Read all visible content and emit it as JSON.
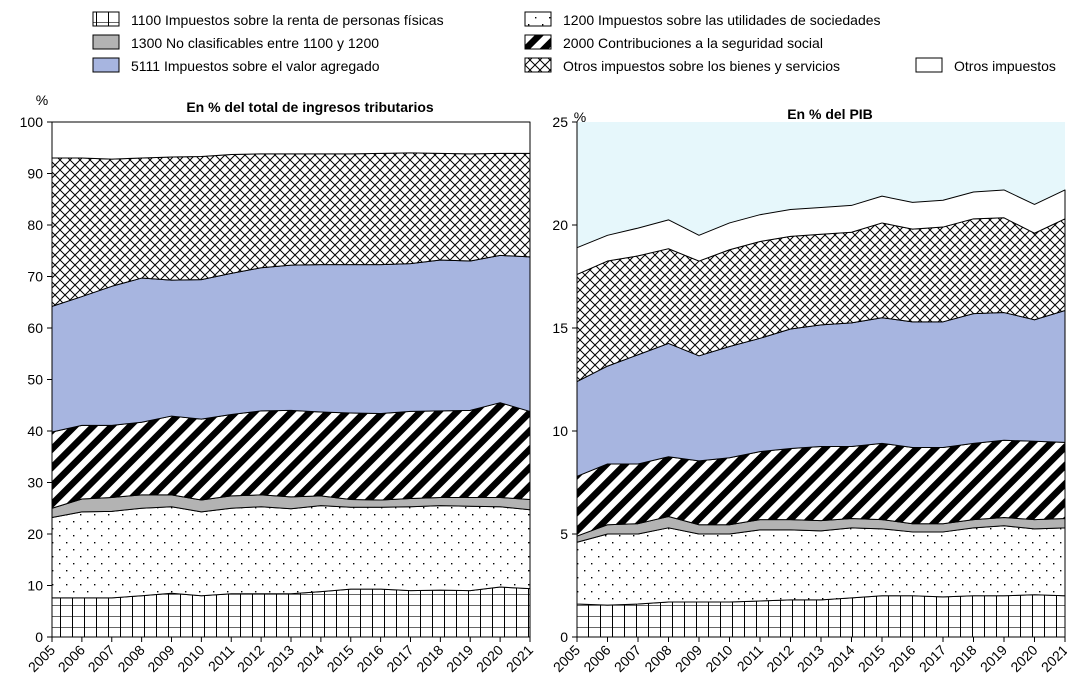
{
  "chart_data": {
    "type": "area",
    "stacked": true,
    "legend_position": "top",
    "x": [
      "2005",
      "2006",
      "2007",
      "2008",
      "2009",
      "2010",
      "2011",
      "2012",
      "2013",
      "2014",
      "2015",
      "2016",
      "2017",
      "2018",
      "2019",
      "2020",
      "2021"
    ],
    "legend": [
      {
        "key": "s1100",
        "label": "1100 Impuestos sobre la renta de personas físicas",
        "fill": "grid",
        "color": "#ffffff"
      },
      {
        "key": "s1200",
        "label": "1200 Impuestos sobre las utilidades de sociedades",
        "fill": "dots",
        "color": "#ffffff"
      },
      {
        "key": "s1300",
        "label": "1300 No clasificables entre 1100 y 1200",
        "fill": "solid",
        "color": "#b3b3b3"
      },
      {
        "key": "s2000",
        "label": "2000 Contribuciones a la seguridad social",
        "fill": "diagonal",
        "color": "#000000"
      },
      {
        "key": "s5111",
        "label": "5111 Impuestos sobre el valor agregado",
        "fill": "solid",
        "color": "#a7b5e0"
      },
      {
        "key": "s5other",
        "label": "Otros impuestos sobre los bienes y servicios",
        "fill": "crosshatch",
        "color": "#ffffff"
      },
      {
        "key": "sother",
        "label": "Otros impuestos",
        "fill": "solid",
        "color": "#ffffff"
      }
    ],
    "panels": [
      {
        "title": "En % del total de ingresos tributarios",
        "ylabel": "%",
        "ylim": [
          0,
          100
        ],
        "yticks": [
          0,
          10,
          20,
          30,
          40,
          50,
          60,
          70,
          80,
          90,
          100
        ],
        "background": "#ffffff",
        "series": [
          {
            "key": "s1100",
            "values": [
              7.6,
              7.6,
              7.6,
              8.0,
              8.5,
              8.0,
              8.4,
              8.4,
              8.4,
              8.8,
              9.3,
              9.3,
              9.0,
              9.1,
              9.0,
              9.7,
              9.4
            ]
          },
          {
            "key": "s1200",
            "values": [
              15.6,
              16.7,
              16.8,
              17.0,
              16.8,
              16.3,
              16.6,
              16.9,
              16.5,
              16.7,
              15.9,
              15.9,
              16.3,
              16.4,
              16.4,
              15.6,
              15.3
            ]
          },
          {
            "key": "s1300",
            "values": [
              1.8,
              2.5,
              2.7,
              2.6,
              2.3,
              2.3,
              2.4,
              2.3,
              2.3,
              1.9,
              1.5,
              1.4,
              1.6,
              1.6,
              1.7,
              1.8,
              2.0
            ]
          },
          {
            "key": "s2000",
            "values": [
              14.8,
              14.3,
              14.0,
              14.1,
              15.3,
              15.7,
              15.8,
              16.3,
              16.8,
              16.3,
              16.8,
              16.8,
              16.9,
              16.8,
              16.9,
              18.4,
              17.1
            ]
          },
          {
            "key": "s5111",
            "values": [
              24.4,
              25.0,
              27.0,
              28.0,
              26.4,
              27.1,
              27.4,
              27.8,
              28.2,
              28.6,
              28.8,
              28.9,
              28.7,
              29.3,
              29.0,
              28.6,
              30.0
            ]
          },
          {
            "key": "s5other",
            "values": [
              28.8,
              26.9,
              24.7,
              23.3,
              23.9,
              23.9,
              23.1,
              22.1,
              21.6,
              21.5,
              21.5,
              21.6,
              21.5,
              20.7,
              20.8,
              19.8,
              20.1
            ]
          },
          {
            "key": "sother",
            "values": [
              7.0,
              7.0,
              7.2,
              7.0,
              6.8,
              6.7,
              6.3,
              6.2,
              6.2,
              6.2,
              6.2,
              6.1,
              6.0,
              6.1,
              6.2,
              6.1,
              6.1
            ]
          }
        ]
      },
      {
        "title": "En % del PIB",
        "ylabel": "%",
        "ylim": [
          0,
          25
        ],
        "yticks": [
          0,
          5,
          10,
          15,
          20,
          25
        ],
        "background": "#e6f7fb",
        "series": [
          {
            "key": "s1100",
            "values": [
              1.6,
              1.55,
              1.6,
              1.7,
              1.7,
              1.7,
              1.75,
              1.8,
              1.8,
              1.9,
              2.0,
              2.0,
              1.95,
              2.0,
              2.0,
              2.05,
              2.0
            ]
          },
          {
            "key": "s1200",
            "values": [
              3.0,
              3.45,
              3.4,
              3.6,
              3.3,
              3.3,
              3.45,
              3.4,
              3.35,
              3.4,
              3.25,
              3.1,
              3.15,
              3.3,
              3.4,
              3.2,
              3.3
            ]
          },
          {
            "key": "s1300",
            "values": [
              0.3,
              0.45,
              0.5,
              0.55,
              0.45,
              0.45,
              0.5,
              0.5,
              0.5,
              0.45,
              0.45,
              0.4,
              0.4,
              0.4,
              0.4,
              0.45,
              0.45
            ]
          },
          {
            "key": "s2000",
            "values": [
              2.9,
              2.95,
              2.9,
              2.9,
              3.1,
              3.25,
              3.3,
              3.45,
              3.6,
              3.5,
              3.7,
              3.7,
              3.7,
              3.7,
              3.75,
              3.8,
              3.7
            ]
          },
          {
            "key": "s5111",
            "values": [
              4.6,
              4.75,
              5.3,
              5.5,
              5.1,
              5.4,
              5.5,
              5.8,
              5.9,
              6.0,
              6.1,
              6.1,
              6.1,
              6.3,
              6.2,
              5.9,
              6.4
            ]
          },
          {
            "key": "s5other",
            "values": [
              5.2,
              5.1,
              4.8,
              4.6,
              4.6,
              4.7,
              4.7,
              4.5,
              4.4,
              4.4,
              4.6,
              4.5,
              4.6,
              4.6,
              4.6,
              4.2,
              4.45
            ]
          },
          {
            "key": "sother",
            "values": [
              1.3,
              1.25,
              1.35,
              1.4,
              1.25,
              1.3,
              1.3,
              1.3,
              1.3,
              1.3,
              1.3,
              1.3,
              1.3,
              1.3,
              1.35,
              1.4,
              1.4
            ]
          }
        ]
      }
    ]
  }
}
